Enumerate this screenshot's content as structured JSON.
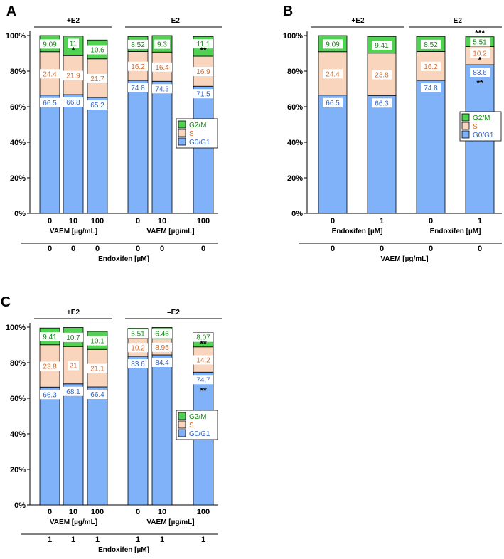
{
  "colors": {
    "g0g1": "#7fb2f8",
    "s": "#f9d5bd",
    "g2m": "#52d252",
    "g0g1_text": "#2f63c8",
    "s_text": "#d86a28",
    "g2m_text": "#158a15"
  },
  "legend": {
    "g2m": "G2/M",
    "s": "S",
    "g0g1": "G0/G1"
  },
  "chart_data": [
    {
      "panel": "A",
      "type": "bar",
      "stacked": true,
      "ylim": [
        0,
        100
      ],
      "yticks": [
        "0%",
        "20%",
        "40%",
        "60%",
        "80%",
        "100%"
      ],
      "groups": [
        "+E2",
        "–E2"
      ],
      "categories": [
        "0",
        "10",
        "100",
        "0",
        "10",
        "100"
      ],
      "xlabel_groups": [
        "VAEM [µg/mL]",
        "VAEM [µg/mL]"
      ],
      "second_row": [
        "0",
        "0",
        "0",
        "0",
        "0",
        "0"
      ],
      "second_label": "Endoxifen [µM]",
      "series": [
        {
          "name": "G0/G1",
          "values": [
            66.5,
            66.8,
            65.2,
            74.8,
            74.3,
            71.5
          ],
          "labels": [
            "66.5",
            "66.8",
            "65.2",
            "74.8",
            "74.3",
            "71.5"
          ]
        },
        {
          "name": "S",
          "values": [
            24.4,
            21.9,
            21.7,
            16.2,
            16.4,
            16.9
          ],
          "labels": [
            "24.4",
            "21.9",
            "21.7",
            "16.2",
            "16.4",
            "16.9"
          ]
        },
        {
          "name": "G2/M",
          "values": [
            9.09,
            11,
            10.6,
            8.52,
            9.3,
            11.1
          ],
          "labels": [
            "9.09",
            "11",
            "10.6",
            "8.52",
            "9.3",
            "11.1"
          ]
        }
      ],
      "significance": {
        "g0g1": [
          "",
          "",
          "",
          "",
          "",
          ""
        ],
        "s": [
          "",
          "",
          "",
          "",
          "",
          ""
        ],
        "g2m": [
          "",
          "*",
          "",
          "",
          "",
          "**"
        ],
        "top": [
          "",
          "",
          "",
          "",
          "",
          ""
        ]
      }
    },
    {
      "panel": "B",
      "type": "bar",
      "stacked": true,
      "ylim": [
        0,
        100
      ],
      "yticks": [
        "0%",
        "20%",
        "40%",
        "60%",
        "80%",
        "100%"
      ],
      "groups": [
        "+E2",
        "–E2"
      ],
      "categories": [
        "0",
        "1",
        "0",
        "1"
      ],
      "xlabel_groups": [
        "Endoxifen [µM]",
        "Endoxifen [µM]"
      ],
      "second_row": [
        "0",
        "0",
        "0",
        "0"
      ],
      "second_label": "VAEM [µg/mL]",
      "series": [
        {
          "name": "G0/G1",
          "values": [
            66.5,
            66.3,
            74.8,
            83.6
          ],
          "labels": [
            "66.5",
            "66.3",
            "74.8",
            "83.6"
          ]
        },
        {
          "name": "S",
          "values": [
            24.4,
            23.8,
            16.2,
            10.2
          ],
          "labels": [
            "24.4",
            "23.8",
            "16.2",
            "10.2"
          ]
        },
        {
          "name": "G2/M",
          "values": [
            9.09,
            9.41,
            8.52,
            5.51
          ],
          "labels": [
            "9.09",
            "9.41",
            "8.52",
            "5.51"
          ]
        }
      ],
      "significance": {
        "g0g1": [
          "",
          "",
          "",
          "**"
        ],
        "s": [
          "",
          "",
          "",
          "*"
        ],
        "g2m": [
          "",
          "",
          "",
          ""
        ],
        "top": [
          "",
          "",
          "",
          "***"
        ]
      }
    },
    {
      "panel": "C",
      "type": "bar",
      "stacked": true,
      "ylim": [
        0,
        100
      ],
      "yticks": [
        "0%",
        "20%",
        "40%",
        "60%",
        "80%",
        "100%"
      ],
      "groups": [
        "+E2",
        "–E2"
      ],
      "categories": [
        "0",
        "10",
        "100",
        "0",
        "10",
        "100"
      ],
      "xlabel_groups": [
        "VAEM [µg/mL]",
        "VAEM [µg/mL]"
      ],
      "second_row": [
        "1",
        "1",
        "1",
        "1",
        "1",
        "1"
      ],
      "second_label": "Endoxifen [µM]",
      "series": [
        {
          "name": "G0/G1",
          "values": [
            66.3,
            68.1,
            66.4,
            83.6,
            84.4,
            74.7
          ],
          "labels": [
            "66.3",
            "68.1",
            "66.4",
            "83.6",
            "84.4",
            "74.7"
          ]
        },
        {
          "name": "S",
          "values": [
            23.8,
            21,
            21.1,
            10.2,
            8.95,
            14.2
          ],
          "labels": [
            "23.8",
            "21",
            "21.1",
            "10.2",
            "8.95",
            "14.2"
          ]
        },
        {
          "name": "G2/M",
          "values": [
            9.41,
            10.7,
            10.1,
            5.51,
            6.46,
            8.07
          ],
          "labels": [
            "9.41",
            "10.7",
            "10.1",
            "5.51",
            "6.46",
            "8.07"
          ]
        }
      ],
      "significance": {
        "g0g1": [
          "",
          "",
          "",
          "",
          "",
          "**"
        ],
        "s": [
          "",
          "",
          "",
          "",
          "",
          ""
        ],
        "g2m": [
          "",
          "",
          "",
          "",
          "",
          "**"
        ],
        "top": [
          "",
          "",
          "",
          "",
          "",
          ""
        ]
      }
    }
  ]
}
